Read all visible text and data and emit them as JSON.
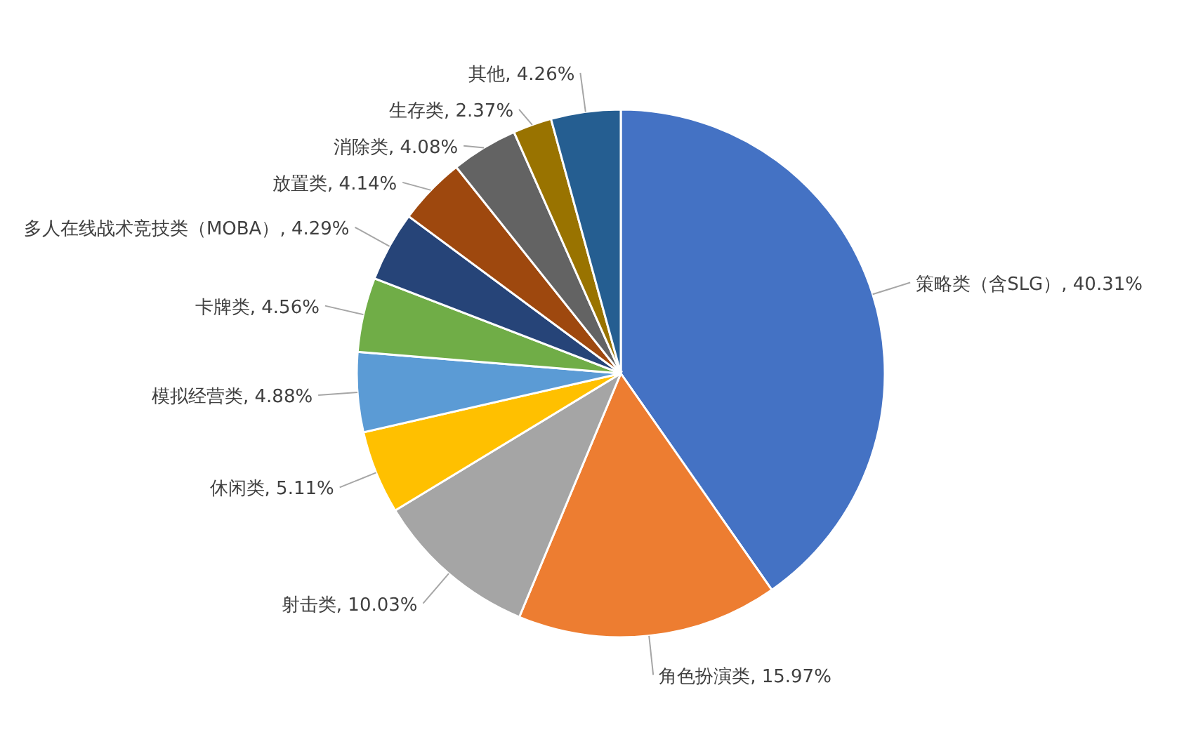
{
  "chart_data": {
    "type": "pie",
    "categories": [
      "策略类（含SLG）",
      "角色扮演类",
      "射击类",
      "休闲类",
      "模拟经营类",
      "卡牌类",
      "多人在线战术竞技类（MOBA）",
      "放置类",
      "消除类",
      "生存类",
      "其他"
    ],
    "values": [
      40.31,
      15.97,
      10.03,
      5.11,
      4.88,
      4.56,
      4.29,
      4.14,
      4.08,
      2.37,
      4.26
    ],
    "value_labels": [
      "40.31%",
      "15.97%",
      "10.03%",
      "5.11%",
      "4.88%",
      "4.56%",
      "4.29%",
      "4.14%",
      "4.08%",
      "2.37%",
      "4.26%"
    ],
    "colors": [
      "#4472c4",
      "#ed7d31",
      "#a5a5a5",
      "#ffc000",
      "#5b9bd5",
      "#70ad47",
      "#264478",
      "#9e480e",
      "#636363",
      "#997300",
      "#255e91"
    ]
  }
}
